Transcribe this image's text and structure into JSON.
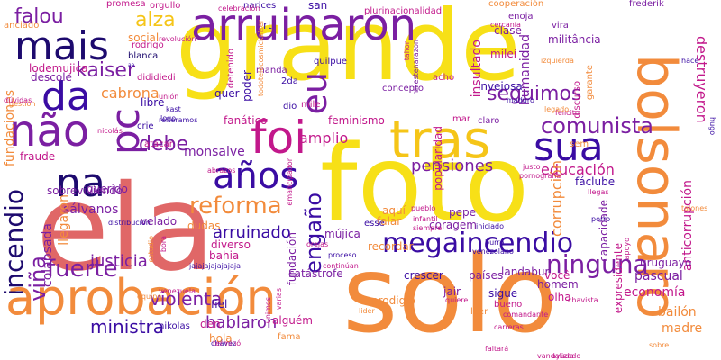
{
  "palette": {
    "dark_purple": "#3a0ca3",
    "navy": "#1d0a6e",
    "purple": "#7b1fa2",
    "magenta": "#c2188b",
    "pink": "#e0457b",
    "salmon": "#e06767",
    "orange": "#f28b3c",
    "gold": "#f5c518",
    "yellow": "#f7e017"
  },
  "words": [
    "grande",
    "foto",
    "ela",
    "solo",
    "aprobación",
    "bolsonaro",
    "tras",
    "arruinaron",
    "mais",
    "da",
    "não",
    "foi",
    "sua",
    "pc",
    "eu",
    "años",
    "na",
    "incendio",
    "megaincendio",
    "ninguna",
    "comunista",
    "seguimos",
    "kaiser",
    "falou",
    "alza",
    "fuerte",
    "reforma",
    "debe",
    "engaño",
    "viña",
    "violenta",
    "justicia",
    "pensiones",
    "arruinado",
    "educación",
    "corrupción",
    "ministra",
    "hablaron",
    "economía",
    "pascual",
    "bailón",
    "madre",
    "destruyeron",
    "anticorrupción",
    "humanidad",
    "insultado",
    "popularidad",
    "feminismo",
    "monsalve",
    "sálvanos",
    "colapsada",
    "llegaron",
    "fundaciones",
    "lodemujica",
    "fraude",
    "cabrona",
    "amplio",
    "fanático",
    "poder",
    "social",
    "clase",
    "militância",
    "mileí",
    "invejosa",
    "jair",
    "prodigio",
    "catástrofe",
    "fundación",
    "bahia",
    "diverso",
    "velado",
    "querido",
    "sobreviviendo",
    "descole",
    "mújica",
    "coragem",
    "recordar",
    "falar",
    "aquí",
    "pepe",
    "fáclube",
    "llegas",
    "capacidade",
    "expresidente",
    "uruguayo",
    "landabur",
    "homem",
    "olha",
    "você",
    "sigue",
    "bueno",
    "países",
    "crescer",
    "fiel",
    "den",
    "hola",
    "nikolas",
    "alguém",
    "fama",
    "leer",
    "libre",
    "quer",
    "manda",
    "2da",
    "concepto",
    "acho",
    "claro",
    "mar",
    "blanca",
    "rodrigo",
    "anciado",
    "promesa",
    "orgullo",
    "narices",
    "san",
    "rt",
    "quilpue",
    "enoja",
    "vira",
    "frederik",
    "discurso",
    "garante",
    "plurinacionalidad",
    "cooperación",
    "dididiedi",
    "mile",
    "dio",
    "tahor",
    "milestenarazon",
    "detenido",
    "todotelecosmickaiser",
    "esse",
    "pueblo",
    "infantil",
    "siempre",
    "pornografia",
    "justo",
    "felicito",
    "maduro",
    "legado",
    "porro",
    "burro",
    "venezolano",
    "proceso",
    "continúan",
    "chávez",
    "chavista",
    "comandante",
    "unimos",
    "varias",
    "lider",
    "carreras",
    "faltará",
    "vandalizado",
    "quiere",
    "iniciado",
    "emancipador",
    "orejas",
    "abrazos",
    "reiteramos",
    "atacar",
    "crie",
    "logo",
    "kast",
    "sem",
    "cercanía",
    "unión",
    "gestión",
    "celebración",
    "hugo",
    "hace",
    "apoyo",
    "talones",
    "equipo",
    "venezuela",
    "bora",
    "estudio",
    "distribución",
    "nicolás",
    "revolución",
    "terminó",
    "sobre",
    "ayuda",
    "izquierda",
    "aa",
    "jajajajajajajaja",
    "dudas",
    "dúvidas",
    "comparte"
  ]
}
